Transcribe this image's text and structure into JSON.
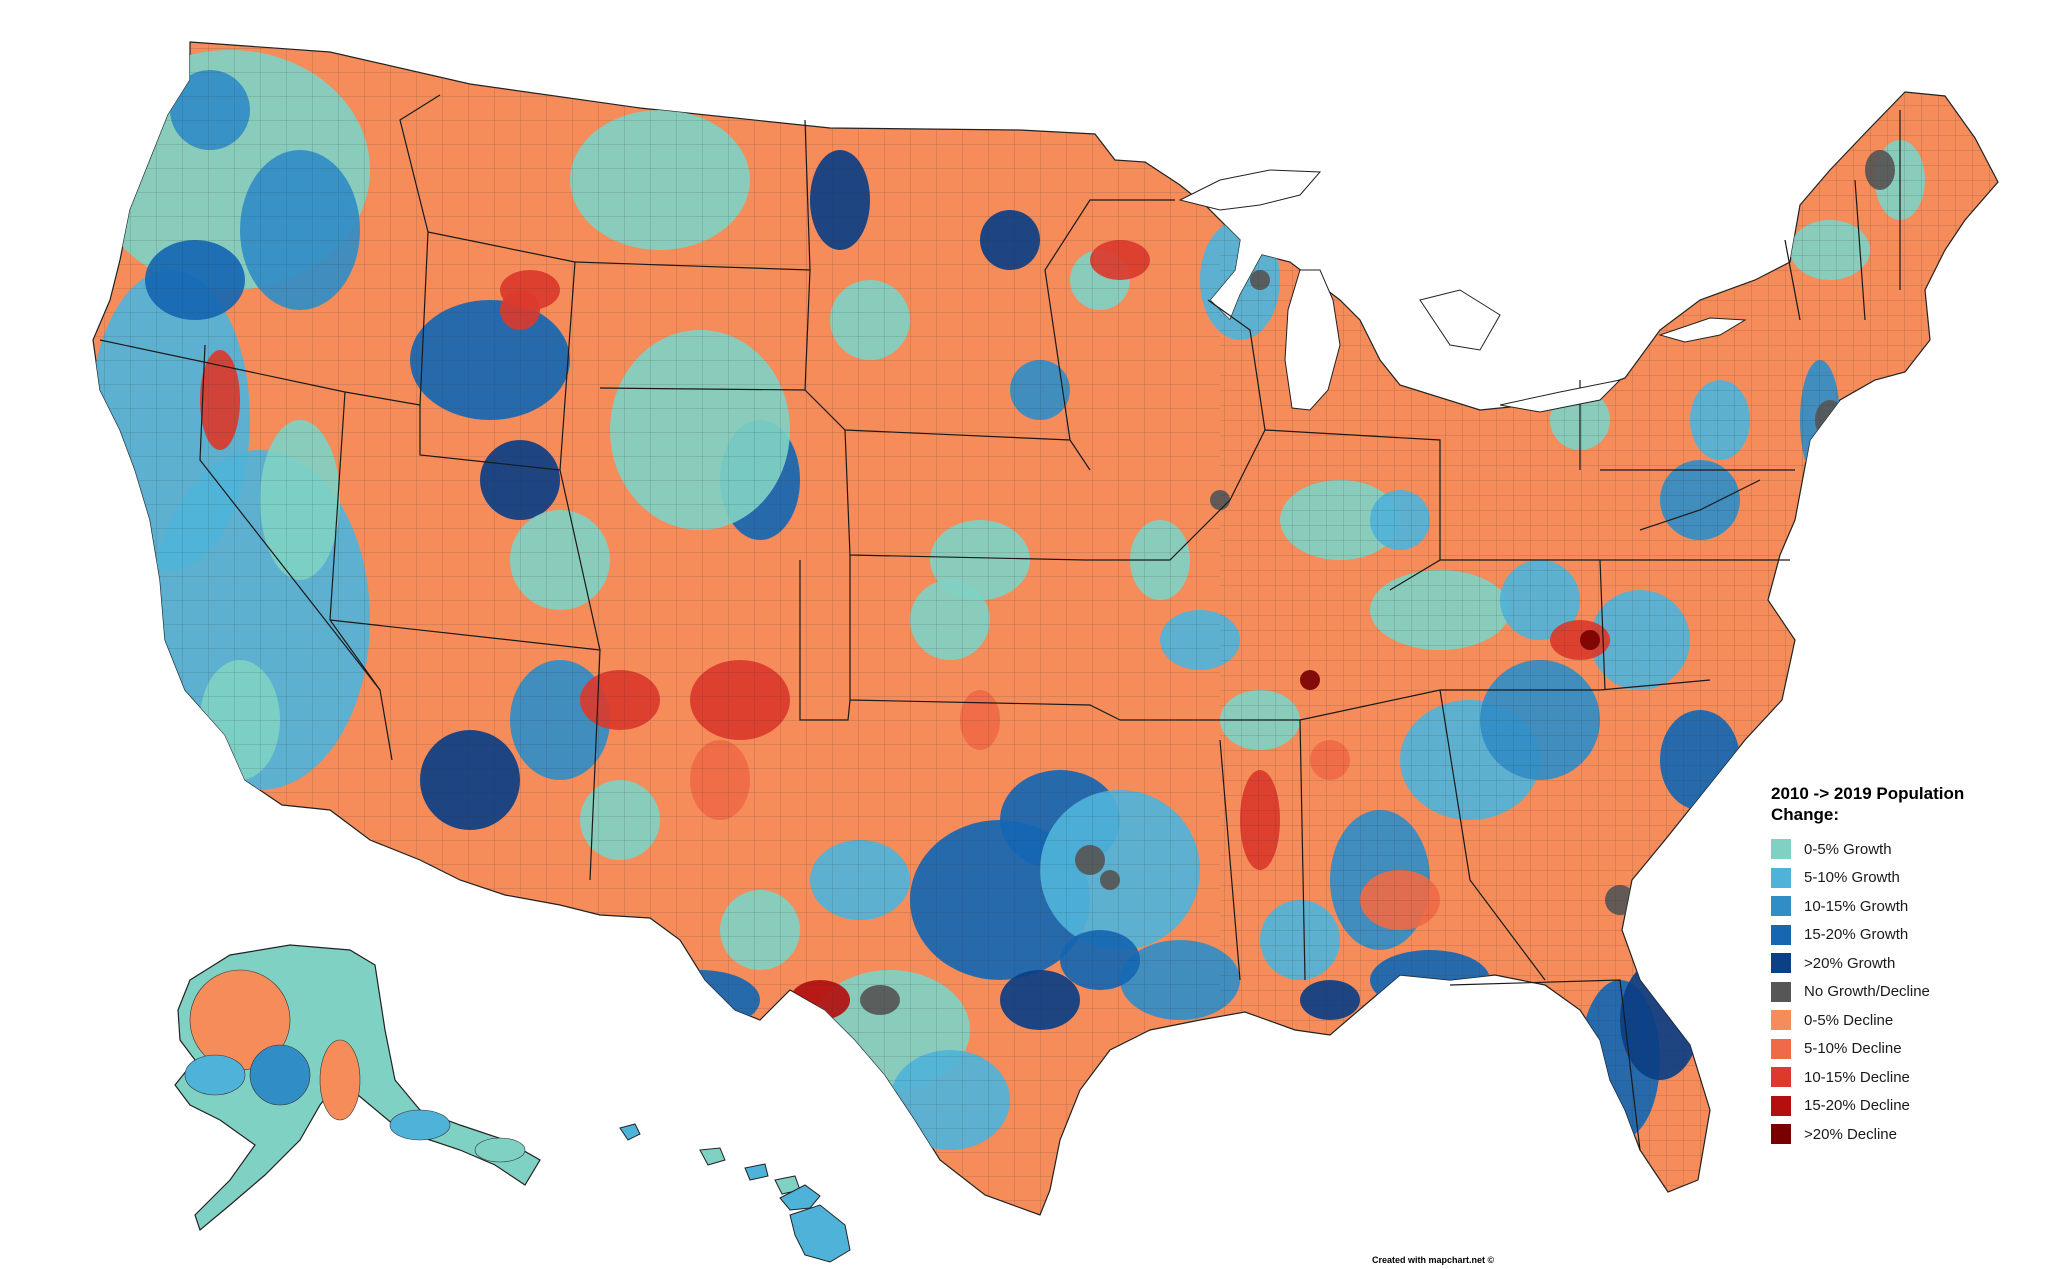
{
  "legend": {
    "title": "2010 -> 2019 Population Change:",
    "items": [
      {
        "label": "0-5% Growth",
        "color": "#7fd1c3"
      },
      {
        "label": "5-10% Growth",
        "color": "#4fb3d9"
      },
      {
        "label": "10-15% Growth",
        "color": "#318dc6"
      },
      {
        "label": "15-20% Growth",
        "color": "#1567b3"
      },
      {
        "label": ">20% Growth",
        "color": "#0b3f86"
      },
      {
        "label": "No Growth/Decline",
        "color": "#565656"
      },
      {
        "label": "0-5% Decline",
        "color": "#f58c5a"
      },
      {
        "label": "5-10% Decline",
        "color": "#ef6a47"
      },
      {
        "label": "10-15% Decline",
        "color": "#db3a2c"
      },
      {
        "label": "15-20% Decline",
        "color": "#b30f0f"
      },
      {
        "label": ">20% Decline",
        "color": "#7a0000"
      }
    ]
  },
  "credit": "Created with mapchart.net ©"
}
